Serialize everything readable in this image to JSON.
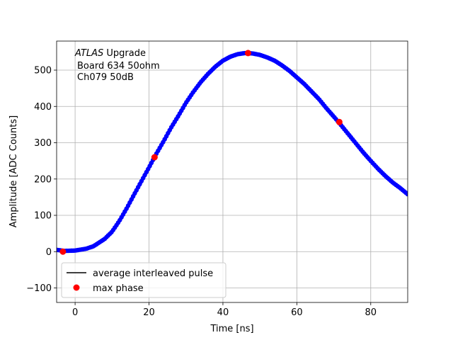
{
  "chart_data": {
    "type": "scatter",
    "title": "",
    "xlabel": "Time [ns]",
    "ylabel": "Amplitude [ADC Counts]",
    "xlim": [
      -5,
      90
    ],
    "ylim": [
      -140,
      580
    ],
    "xticks": [
      0,
      20,
      40,
      60,
      80
    ],
    "yticks": [
      -100,
      0,
      100,
      200,
      300,
      400,
      500
    ],
    "grid": true,
    "annotation": {
      "line1_italic": "ATLAS",
      "line1_rest": " Upgrade",
      "line2": "Board 634 50ohm",
      "line3": "Ch079 50dB"
    },
    "legend": {
      "placement": "lower-left",
      "entries": [
        {
          "label": "average interleaved pulse",
          "kind": "line",
          "color": "#000000"
        },
        {
          "label": "max phase",
          "kind": "marker",
          "color": "#ff0000"
        }
      ]
    },
    "series": [
      {
        "name": "average interleaved pulse",
        "color": "#0000ff",
        "style": "dense-markers",
        "curve": [
          [
            -5,
            5
          ],
          [
            -3,
            2
          ],
          [
            0,
            3
          ],
          [
            3,
            8
          ],
          [
            5,
            15
          ],
          [
            8,
            35
          ],
          [
            10,
            55
          ],
          [
            12,
            85
          ],
          [
            14,
            120
          ],
          [
            16,
            158
          ],
          [
            18,
            195
          ],
          [
            20,
            232
          ],
          [
            22,
            270
          ],
          [
            24,
            305
          ],
          [
            26,
            342
          ],
          [
            28,
            375
          ],
          [
            30,
            410
          ],
          [
            32,
            440
          ],
          [
            34,
            467
          ],
          [
            36,
            490
          ],
          [
            38,
            510
          ],
          [
            40,
            526
          ],
          [
            42,
            537
          ],
          [
            44,
            544
          ],
          [
            46,
            547
          ],
          [
            48,
            546
          ],
          [
            50,
            542
          ],
          [
            52,
            535
          ],
          [
            54,
            526
          ],
          [
            56,
            513
          ],
          [
            58,
            498
          ],
          [
            60,
            480
          ],
          [
            62,
            462
          ],
          [
            64,
            441
          ],
          [
            66,
            420
          ],
          [
            68,
            395
          ],
          [
            70,
            372
          ],
          [
            72,
            348
          ],
          [
            74,
            323
          ],
          [
            76,
            298
          ],
          [
            78,
            273
          ],
          [
            80,
            250
          ],
          [
            82,
            228
          ],
          [
            84,
            208
          ],
          [
            86,
            190
          ],
          [
            88,
            175
          ],
          [
            90,
            158
          ]
        ]
      },
      {
        "name": "max phase",
        "color": "#ff0000",
        "points": [
          [
            -3.3,
            0
          ],
          [
            21.5,
            260
          ],
          [
            46.8,
            547
          ],
          [
            71.5,
            357
          ]
        ]
      }
    ]
  }
}
